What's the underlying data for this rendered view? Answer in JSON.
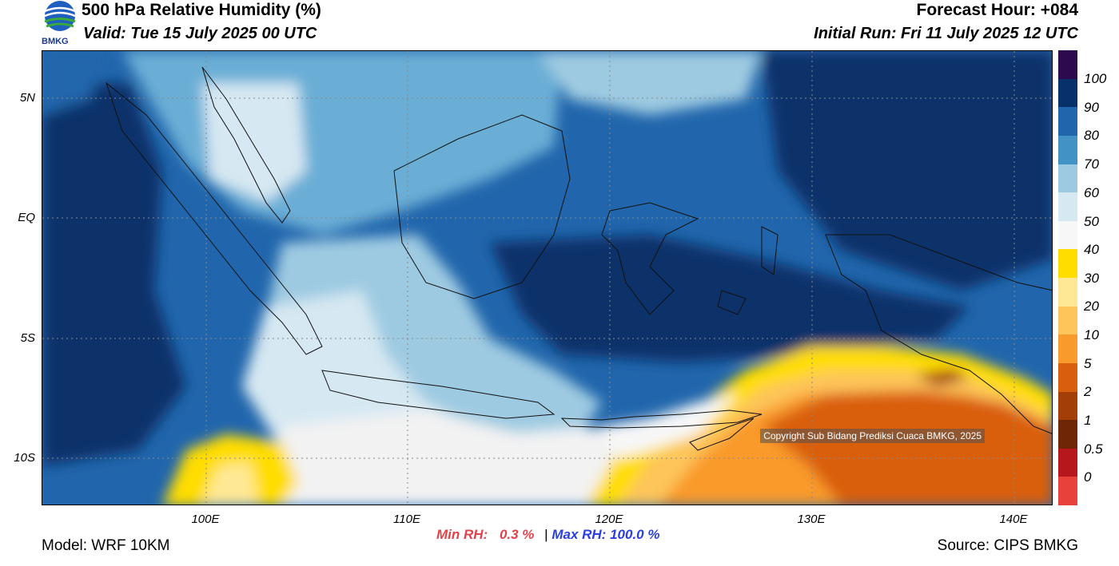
{
  "header": {
    "title": "500 hPa Relative Humidity (%)",
    "valid": "Valid: Tue 15 July 2025 00 UTC",
    "forecast_hour": "Forecast Hour: +084",
    "initial_run": "Initial Run: Fri 11 July 2025 12 UTC",
    "logo_text": "BMKG"
  },
  "map": {
    "lat_labels": [
      "5N",
      "EQ",
      "5S",
      "10S"
    ],
    "lon_labels": [
      "100E",
      "110E",
      "120E",
      "130E",
      "140E"
    ],
    "copyright": "Copyright Sub Bidang Prediksi Cuaca BMKG, 2025"
  },
  "colorbar": {
    "labels": [
      "100",
      "90",
      "80",
      "70",
      "60",
      "50",
      "40",
      "30",
      "20",
      "10",
      "5",
      "2",
      "1",
      "0.5",
      "0"
    ],
    "colors": [
      "#2d0a4e",
      "#08306b",
      "#2166ac",
      "#4292c6",
      "#9ecae1",
      "#d6e8f2",
      "#f7f7f7",
      "#ffdd00",
      "#ffe895",
      "#fdc55a",
      "#f99a2c",
      "#d95e0e",
      "#a33e08",
      "#6e2607",
      "#b5171c",
      "#e8403a"
    ]
  },
  "stats": {
    "min_label": "Min RH:",
    "min_value": "0.3 %",
    "separator": "|",
    "max_label": "Max RH:",
    "max_value": "100.0 %"
  },
  "footer": {
    "model": "Model: WRF 10KM",
    "source": "Source: CIPS BMKG"
  }
}
